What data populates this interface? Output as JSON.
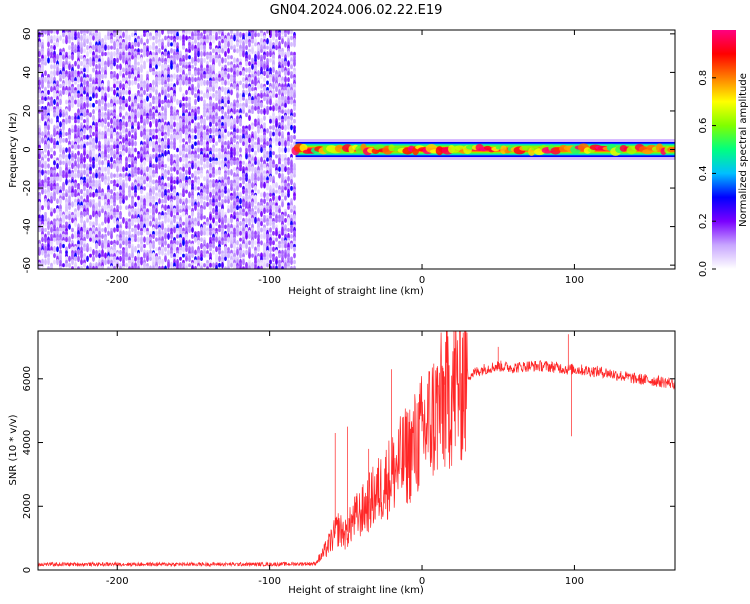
{
  "chart_data": [
    {
      "type": "heatmap",
      "title": "GN04.2024.006.02.22.E19",
      "xlabel": "Height of straight line (km)",
      "ylabel": "Frequency (Hz)",
      "xlim": [
        -252,
        166
      ],
      "ylim": [
        -62,
        62
      ],
      "x_ticks": [
        -200,
        -100,
        0,
        100
      ],
      "y_ticks": [
        60,
        40,
        20,
        0,
        -20,
        -40,
        -60
      ],
      "colorbar": {
        "label": "Normalized spectral amplitude",
        "range": [
          0,
          1
        ],
        "ticks": [
          0.0,
          0.2,
          0.4,
          0.6,
          0.8
        ],
        "colors": [
          "#ffffff",
          "#c8a6ff",
          "#7a00ff",
          "#0000ff",
          "#00bfff",
          "#00ff80",
          "#80ff00",
          "#ffff00",
          "#ff8000",
          "#ff0000",
          "#ff0080"
        ]
      },
      "noise_region": {
        "x_range": [
          -252,
          -83
        ],
        "freq_range": [
          -62,
          62
        ],
        "amplitude_range": [
          0.05,
          0.3
        ]
      },
      "signal_band": {
        "x_range": [
          -83,
          166
        ],
        "center_freq": 0,
        "half_width": 3,
        "peak_amplitude": 0.95
      },
      "grid": false
    },
    {
      "type": "line",
      "xlabel": "Height of straight line (km)",
      "ylabel": "SNR (10 * v/v)",
      "xlim": [
        -252,
        166
      ],
      "ylim": [
        0,
        7500
      ],
      "x_ticks": [
        -200,
        -100,
        0,
        100
      ],
      "y_ticks": [
        0,
        2000,
        4000,
        6000
      ],
      "line_color": "#ff0000",
      "x": [
        -252,
        -200,
        -150,
        -100,
        -70,
        -65,
        -60,
        -55,
        -50,
        -45,
        -40,
        -35,
        -30,
        -25,
        -20,
        -15,
        -10,
        -5,
        0,
        10,
        20,
        30,
        40,
        50,
        60,
        70,
        80,
        90,
        95,
        100,
        110,
        120,
        130,
        140,
        150,
        166
      ],
      "values": [
        180,
        180,
        180,
        180,
        200,
        500,
        900,
        1300,
        1100,
        1600,
        1800,
        2100,
        2400,
        2700,
        3000,
        3300,
        3600,
        3900,
        4300,
        5000,
        5700,
        6100,
        6300,
        6400,
        6350,
        6400,
        6400,
        6350,
        6300,
        6300,
        6250,
        6200,
        6100,
        6000,
        5950,
        5850
      ],
      "spikes": [
        [
          -57,
          4300
        ],
        [
          -49,
          4500
        ],
        [
          -35,
          3800
        ],
        [
          -20,
          6300
        ],
        [
          50,
          7000
        ],
        [
          96,
          7400
        ],
        [
          98,
          4200
        ]
      ],
      "grid": false
    }
  ]
}
